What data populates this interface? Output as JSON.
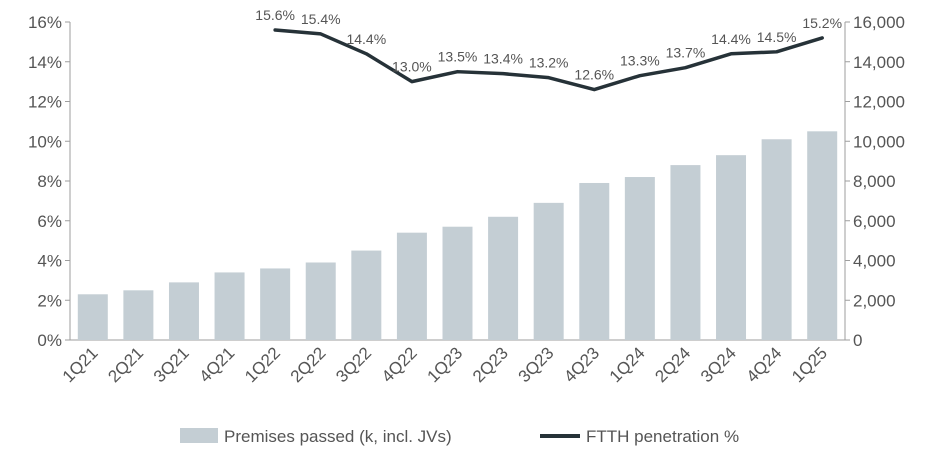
{
  "chart_data": {
    "type": "bar",
    "categories": [
      "1Q21",
      "2Q21",
      "3Q21",
      "4Q21",
      "1Q22",
      "2Q22",
      "3Q22",
      "4Q22",
      "1Q23",
      "2Q23",
      "3Q23",
      "4Q23",
      "1Q24",
      "2Q24",
      "3Q24",
      "4Q24",
      "1Q25"
    ],
    "series": [
      {
        "name": "Premises passed (k, incl. JVs)",
        "type": "bar",
        "axis": "right",
        "color": "#c4ced4",
        "values": [
          2300,
          2500,
          2900,
          3400,
          3600,
          3900,
          4500,
          5400,
          5700,
          6200,
          6900,
          7900,
          8200,
          8800,
          9300,
          10100,
          10500
        ]
      },
      {
        "name": "FTTH penetration %",
        "type": "line",
        "axis": "left",
        "color": "#263238",
        "values": [
          null,
          null,
          null,
          null,
          15.6,
          15.4,
          14.4,
          13.0,
          13.5,
          13.4,
          13.2,
          12.6,
          13.3,
          13.7,
          14.4,
          14.5,
          15.2
        ],
        "labels": [
          null,
          null,
          null,
          null,
          "15.6%",
          "15.4%",
          "14.4%",
          "13.0%",
          "13.5%",
          "13.4%",
          "13.2%",
          "12.6%",
          "13.3%",
          "13.7%",
          "14.4%",
          "14.5%",
          "15.2%"
        ]
      }
    ],
    "y_left": {
      "min": 0,
      "max": 16,
      "ticks": [
        "0%",
        "2%",
        "4%",
        "6%",
        "8%",
        "10%",
        "12%",
        "14%",
        "16%"
      ]
    },
    "y_right": {
      "min": 0,
      "max": 16000,
      "ticks": [
        "0",
        "2,000",
        "4,000",
        "6,000",
        "8,000",
        "10,000",
        "12,000",
        "14,000",
        "16,000"
      ]
    },
    "title": "",
    "xlabel": "",
    "ylabel": "",
    "grid": false,
    "legend_position": "bottom"
  }
}
